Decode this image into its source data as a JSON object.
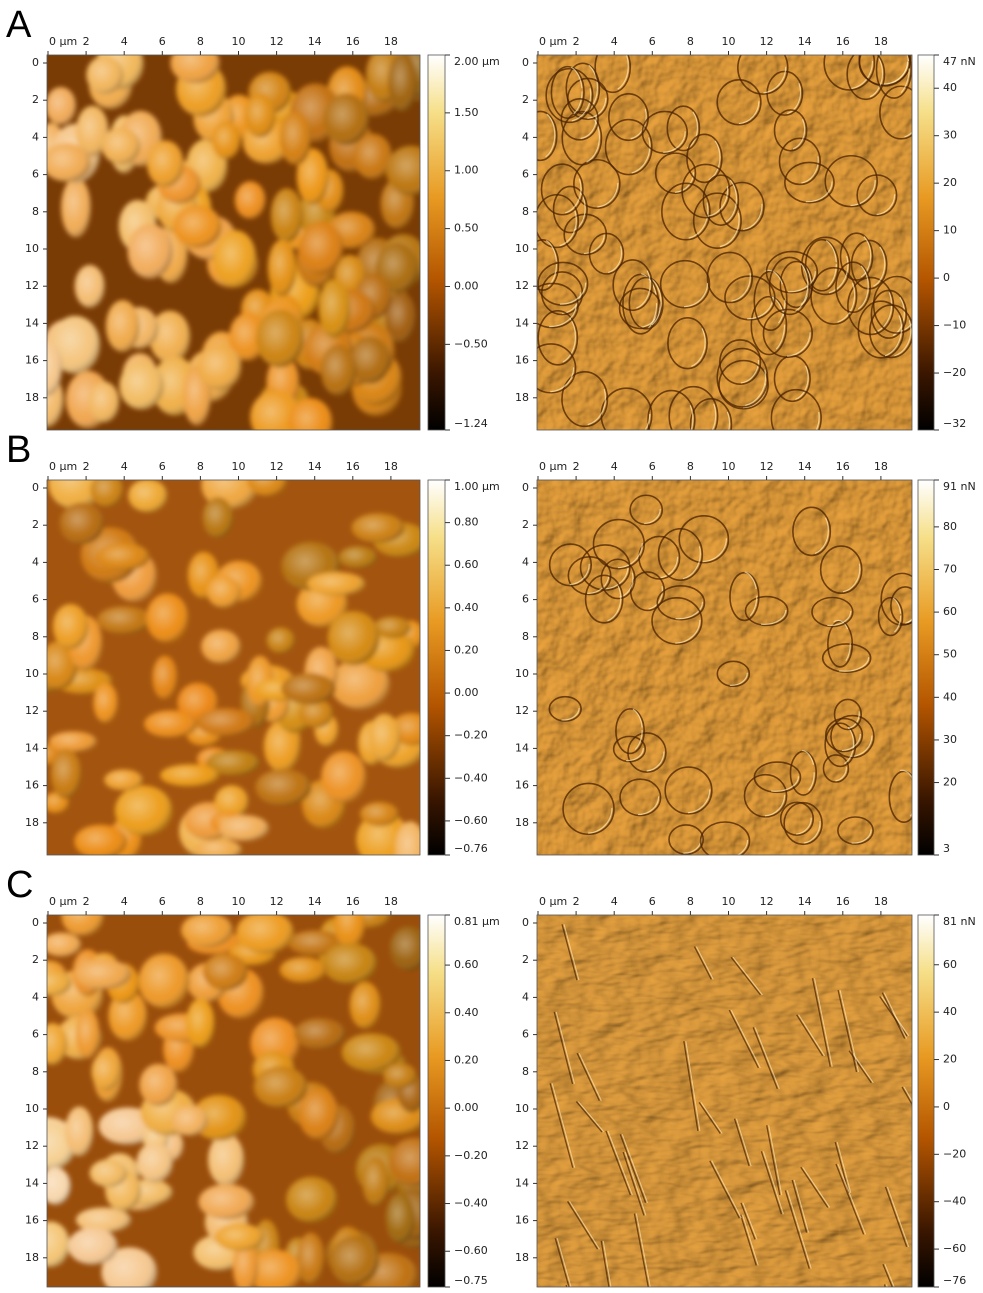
{
  "panels": [
    {
      "label": "A",
      "images": [
        {
          "x_ticks": [
            {
              "value": 0,
              "label": "0 µm"
            },
            2,
            4,
            6,
            8,
            10,
            12,
            14,
            16,
            18
          ],
          "y_ticks": [
            0,
            2,
            4,
            6,
            8,
            10,
            12,
            14,
            16,
            18
          ],
          "colorbar": [
            {
              "value": 2.0,
              "label": "2.00 µm"
            },
            {
              "value": 1.5,
              "label": "1.50"
            },
            {
              "value": 1.0,
              "label": "1.00"
            },
            {
              "value": 0.5,
              "label": "0.50"
            },
            {
              "value": 0.0,
              "label": "0.00"
            },
            {
              "value": -0.5,
              "label": "−0.50"
            },
            {
              "value": -1.24,
              "label": "−1.24"
            }
          ]
        },
        {
          "x_ticks": [
            {
              "value": 0,
              "label": "0 µm"
            },
            2,
            4,
            6,
            8,
            10,
            12,
            14,
            16,
            18
          ],
          "y_ticks": [
            0,
            2,
            4,
            6,
            8,
            10,
            12,
            14,
            16,
            18
          ],
          "colorbar": [
            {
              "value": 47,
              "label": "47 nN"
            },
            40,
            30,
            20,
            10,
            0,
            {
              "value": -10,
              "label": "−10"
            },
            {
              "value": -20,
              "label": "−20"
            },
            {
              "value": -32,
              "label": "−32"
            }
          ]
        }
      ]
    },
    {
      "label": "B",
      "images": [
        {
          "x_ticks": [
            {
              "value": 0,
              "label": "0 µm"
            },
            2,
            4,
            6,
            8,
            10,
            12,
            14,
            16,
            18
          ],
          "y_ticks": [
            0,
            2,
            4,
            6,
            8,
            10,
            12,
            14,
            16,
            18
          ],
          "colorbar": [
            {
              "value": 1.0,
              "label": "1.00 µm"
            },
            {
              "value": 0.8,
              "label": "0.80"
            },
            {
              "value": 0.6,
              "label": "0.60"
            },
            {
              "value": 0.4,
              "label": "0.40"
            },
            {
              "value": 0.2,
              "label": "0.20"
            },
            {
              "value": 0.0,
              "label": "0.00"
            },
            {
              "value": -0.2,
              "label": "−0.20"
            },
            {
              "value": -0.4,
              "label": "−0.40"
            },
            {
              "value": -0.6,
              "label": "−0.60"
            },
            {
              "value": -0.76,
              "label": "−0.76"
            }
          ]
        },
        {
          "x_ticks": [
            {
              "value": 0,
              "label": "0 µm"
            },
            2,
            4,
            6,
            8,
            10,
            12,
            14,
            16,
            18
          ],
          "y_ticks": [
            0,
            2,
            4,
            6,
            8,
            10,
            12,
            14,
            16,
            18
          ],
          "colorbar": [
            {
              "value": 91,
              "label": "91 nN"
            },
            80,
            70,
            60,
            50,
            40,
            30,
            20,
            3
          ]
        }
      ]
    },
    {
      "label": "C",
      "images": [
        {
          "x_ticks": [
            {
              "value": 0,
              "label": "0 µm"
            },
            2,
            4,
            6,
            8,
            10,
            12,
            14,
            16,
            18
          ],
          "y_ticks": [
            0,
            2,
            4,
            6,
            8,
            10,
            12,
            14,
            16,
            18
          ],
          "colorbar": [
            {
              "value": 0.81,
              "label": "0.81 µm"
            },
            {
              "value": 0.6,
              "label": "0.60"
            },
            {
              "value": 0.4,
              "label": "0.40"
            },
            {
              "value": 0.2,
              "label": "0.20"
            },
            {
              "value": 0.0,
              "label": "0.00"
            },
            {
              "value": -0.2,
              "label": "−0.20"
            },
            {
              "value": -0.4,
              "label": "−0.40"
            },
            {
              "value": -0.6,
              "label": "−0.60"
            },
            {
              "value": -0.75,
              "label": "−0.75"
            }
          ]
        },
        {
          "x_ticks": [
            {
              "value": 0,
              "label": "0 µm"
            },
            2,
            4,
            6,
            8,
            10,
            12,
            14,
            16,
            18
          ],
          "y_ticks": [
            0,
            2,
            4,
            6,
            8,
            10,
            12,
            14,
            16,
            18
          ],
          "colorbar": [
            {
              "value": 81,
              "label": "81 nN"
            },
            60,
            40,
            20,
            0,
            {
              "value": -20,
              "label": "−20"
            },
            {
              "value": -40,
              "label": "−40"
            },
            {
              "value": -60,
              "label": "−60"
            },
            {
              "value": -76,
              "label": "−76"
            }
          ]
        }
      ]
    }
  ]
}
